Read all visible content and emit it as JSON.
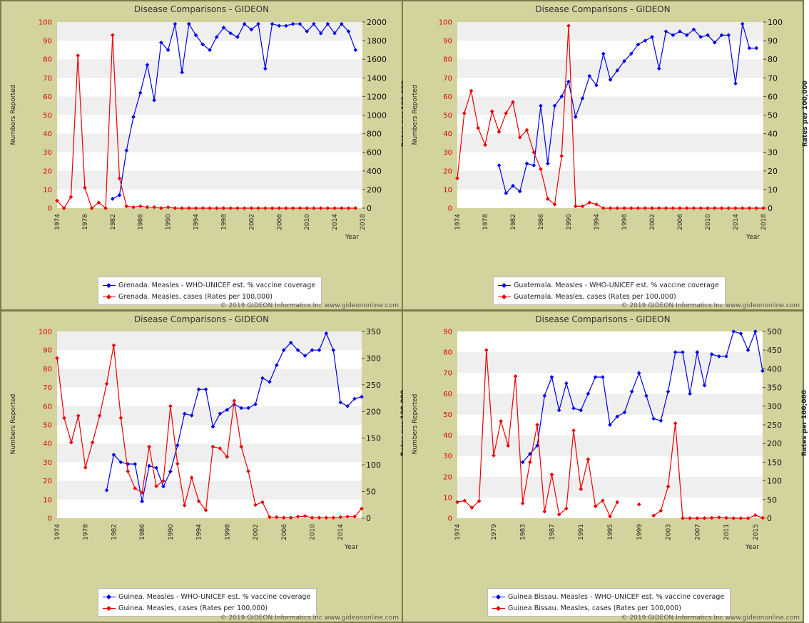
{
  "panels": [
    {
      "title": "Disease Comparisons - GIDEON",
      "ylabel_left": "Numbers Reported",
      "ylabel_right": "Rates per 100,000",
      "xlabel": "Year",
      "copyright": "© 2019 GIDEON Informatics Inc www.gideononline.com",
      "legend": [
        "Grenada. Measles - WHO-UNICEF est. % vaccine coverage",
        "Grenada. Measles, cases (Rates per 100,000)"
      ]
    },
    {
      "title": "Disease Comparisons - GIDEON",
      "ylabel_left": "Numbers Reported",
      "ylabel_right": "Rates per 100,000",
      "xlabel": "Year",
      "copyright": "© 2019 GIDEON Informatics Inc www.gideononline.com",
      "legend": [
        "Guatemala. Measles - WHO-UNICEF est. % vaccine coverage",
        "Guatemala. Measles, cases (Rates per 100,000)"
      ]
    },
    {
      "title": "Disease Comparisons - GIDEON",
      "ylabel_left": "Numbers Reported",
      "ylabel_right": "Rates per 100,000",
      "xlabel": "Year",
      "copyright": "© 2019 GIDEON Informatics Inc www.gideononline.com",
      "legend": [
        "Guinea. Measles - WHO-UNICEF est. % vaccine coverage",
        "Guinea. Measles, cases (Rates per 100,000)"
      ]
    },
    {
      "title": "Disease Comparisons - GIDEON",
      "ylabel_left": "Numbers Reported",
      "ylabel_right": "Rates per 100,000",
      "xlabel": "Year",
      "copyright": "© 2019 GIDEON Informatics Inc www.gideononline.com",
      "legend": [
        "Guinea Bissau. Measles - WHO-UNICEF est. % vaccine coverage",
        "Guinea Bissau. Measles, cases (Rates per 100,000)"
      ]
    }
  ],
  "colors": {
    "coverage": "#0000ee",
    "cases": "#ee0000",
    "band": "#efefef",
    "panel_bg": "#d3d39d"
  },
  "chart_data": [
    {
      "type": "line",
      "title": "Disease Comparisons - GIDEON",
      "xlabel": "Year",
      "xlim": [
        1974,
        2018
      ],
      "x_ticks": [
        "1974",
        "1978",
        "1982",
        "1986",
        "1990",
        "1994",
        "1998",
        "2002",
        "2006",
        "2010",
        "2014",
        "2018"
      ],
      "ylabel_left": "Numbers Reported",
      "ylim_left": [
        0,
        100
      ],
      "y_ticks_left": [
        "0",
        "10",
        "20",
        "30",
        "40",
        "50",
        "60",
        "70",
        "80",
        "90",
        "100"
      ],
      "ylabel_right": "Rates per 100,000",
      "ylim_right": [
        0,
        2000
      ],
      "y_ticks_right": [
        "0",
        "200",
        "400",
        "600",
        "800",
        "1000",
        "1200",
        "1400",
        "1600",
        "1800",
        "2000"
      ],
      "series": [
        {
          "name": "Grenada. Measles - WHO-UNICEF est. % vaccine coverage",
          "axis": "left",
          "x": [
            1982,
            1983,
            1984,
            1985,
            1986,
            1987,
            1988,
            1989,
            1990,
            1991,
            1992,
            1993,
            1994,
            1995,
            1996,
            1997,
            1998,
            1999,
            2000,
            2001,
            2002,
            2003,
            2004,
            2005,
            2006,
            2007,
            2008,
            2009,
            2010,
            2011,
            2012,
            2013,
            2014,
            2015,
            2016,
            2017
          ],
          "values": [
            5,
            7,
            31,
            49,
            62,
            77,
            58,
            89,
            85,
            99,
            73,
            99,
            93,
            88,
            85,
            92,
            97,
            94,
            92,
            99,
            96,
            99,
            75,
            99,
            98,
            98,
            99,
            99,
            95,
            99,
            94,
            99,
            94,
            99,
            95,
            85
          ]
        },
        {
          "name": "Grenada. Measles, cases (Rates per 100,000)",
          "axis": "right",
          "x": [
            1974,
            1975,
            1976,
            1977,
            1978,
            1979,
            1980,
            1981,
            1982,
            1983,
            1984,
            1985,
            1986,
            1987,
            1988,
            1989,
            1990,
            1991,
            1992,
            1993,
            1994,
            1995,
            1996,
            1997,
            1998,
            1999,
            2000,
            2001,
            2002,
            2003,
            2004,
            2005,
            2006,
            2007,
            2008,
            2009,
            2010,
            2011,
            2012,
            2013,
            2014,
            2015,
            2016,
            2017
          ],
          "values": [
            80,
            0,
            120,
            1640,
            220,
            0,
            60,
            0,
            1860,
            320,
            20,
            10,
            20,
            10,
            10,
            0,
            10,
            0,
            0,
            0,
            0,
            0,
            0,
            0,
            0,
            0,
            0,
            0,
            0,
            0,
            0,
            0,
            0,
            0,
            0,
            0,
            0,
            0,
            0,
            0,
            0,
            0,
            0,
            0
          ]
        }
      ]
    },
    {
      "type": "line",
      "title": "Disease Comparisons - GIDEON",
      "xlabel": "Year",
      "xlim": [
        1974,
        2018
      ],
      "x_ticks": [
        "1974",
        "1978",
        "1982",
        "1986",
        "1990",
        "1994",
        "1998",
        "2002",
        "2006",
        "2010",
        "2014",
        "2018"
      ],
      "ylabel_left": "Numbers Reported",
      "ylim_left": [
        0,
        100
      ],
      "y_ticks_left": [
        "0",
        "10",
        "20",
        "30",
        "40",
        "50",
        "60",
        "70",
        "80",
        "90",
        "100"
      ],
      "ylabel_right": "Rates per 100,000",
      "ylim_right": [
        0,
        100
      ],
      "y_ticks_right": [
        "0",
        "10",
        "20",
        "30",
        "40",
        "50",
        "60",
        "70",
        "80",
        "90",
        "100"
      ],
      "series": [
        {
          "name": "Guatemala. Measles - WHO-UNICEF est. % vaccine coverage",
          "axis": "left",
          "x": [
            1980,
            1981,
            1982,
            1983,
            1984,
            1985,
            1986,
            1987,
            1988,
            1989,
            1990,
            1991,
            1992,
            1993,
            1994,
            1995,
            1996,
            1997,
            1998,
            1999,
            2000,
            2001,
            2002,
            2003,
            2004,
            2005,
            2006,
            2007,
            2008,
            2009,
            2010,
            2011,
            2012,
            2013,
            2014,
            2015,
            2016,
            2017
          ],
          "values": [
            23,
            8,
            12,
            9,
            24,
            23,
            55,
            24,
            55,
            60,
            68,
            49,
            59,
            71,
            66,
            83,
            69,
            74,
            79,
            83,
            88,
            90,
            92,
            75,
            95,
            93,
            95,
            93,
            96,
            92,
            93,
            89,
            93,
            93,
            67,
            99,
            86,
            86
          ]
        },
        {
          "name": "Guatemala. Measles, cases (Rates per 100,000)",
          "axis": "right",
          "x": [
            1974,
            1975,
            1976,
            1977,
            1978,
            1979,
            1980,
            1981,
            1982,
            1983,
            1984,
            1985,
            1986,
            1987,
            1988,
            1989,
            1990,
            1991,
            1992,
            1993,
            1994,
            1995,
            1996,
            1997,
            1998,
            1999,
            2000,
            2001,
            2002,
            2003,
            2004,
            2005,
            2006,
            2007,
            2008,
            2009,
            2010,
            2011,
            2012,
            2013,
            2014,
            2015,
            2016,
            2017,
            2018
          ],
          "values": [
            16,
            51,
            63,
            43,
            34,
            52,
            41,
            51,
            57,
            38,
            42,
            30,
            21,
            5,
            2,
            28,
            98,
            1,
            1,
            3,
            2,
            0,
            0,
            0,
            0,
            0,
            0,
            0,
            0,
            0,
            0,
            0,
            0,
            0,
            0,
            0,
            0,
            0,
            0,
            0,
            0,
            0,
            0,
            0,
            0
          ]
        }
      ]
    },
    {
      "type": "line",
      "title": "Disease Comparisons - GIDEON",
      "xlabel": "Year",
      "xlim": [
        1974,
        2017
      ],
      "x_ticks": [
        "1974",
        "1978",
        "1982",
        "1986",
        "1990",
        "1994",
        "1998",
        "2002",
        "2006",
        "2010",
        "2014"
      ],
      "ylabel_left": "Numbers Reported",
      "ylim_left": [
        0,
        100
      ],
      "y_ticks_left": [
        "0",
        "10",
        "20",
        "30",
        "40",
        "50",
        "60",
        "70",
        "80",
        "90",
        "100"
      ],
      "ylabel_right": "Rates per 100,000",
      "ylim_right": [
        0,
        350
      ],
      "y_ticks_right": [
        "0",
        "50",
        "100",
        "150",
        "200",
        "250",
        "300",
        "350"
      ],
      "series": [
        {
          "name": "Guinea. Measles - WHO-UNICEF est. % vaccine coverage",
          "axis": "left",
          "x": [
            1981,
            1982,
            1983,
            1984,
            1985,
            1986,
            1987,
            1988,
            1989,
            1990,
            1991,
            1992,
            1993,
            1994,
            1995,
            1996,
            1997,
            1998,
            1999,
            2000,
            2001,
            2002,
            2003,
            2004,
            2005,
            2006,
            2007,
            2008,
            2009,
            2010,
            2011,
            2012,
            2013,
            2014,
            2015,
            2016,
            2017
          ],
          "values": [
            15,
            34,
            30,
            29,
            29,
            9,
            28,
            27,
            17,
            25,
            39,
            56,
            55,
            69,
            69,
            49,
            56,
            58,
            61,
            59,
            59,
            61,
            75,
            73,
            82,
            90,
            94,
            90,
            87,
            90,
            90,
            99,
            90,
            62,
            60,
            64,
            65
          ]
        },
        {
          "name": "Guinea. Measles, cases (Rates per 100,000)",
          "axis": "right",
          "x": [
            1974,
            1975,
            1976,
            1977,
            1978,
            1979,
            1980,
            1981,
            1982,
            1983,
            1984,
            1985,
            1986,
            1987,
            1988,
            1989,
            1990,
            1991,
            1992,
            1993,
            1994,
            1995,
            1996,
            1997,
            1998,
            1999,
            2000,
            2001,
            2002,
            2003,
            2004,
            2005,
            2006,
            2007,
            2008,
            2009,
            2010,
            2011,
            2012,
            2013,
            2014,
            2015,
            2016,
            2017
          ],
          "values": [
            300,
            188,
            142,
            192,
            95,
            142,
            192,
            252,
            324,
            188,
            88,
            56,
            48,
            134,
            60,
            70,
            210,
            102,
            24,
            76,
            32,
            15,
            134,
            131,
            115,
            220,
            134,
            88,
            25,
            30,
            2,
            2,
            1,
            1,
            3,
            4,
            1,
            1,
            1,
            1,
            2,
            3,
            3,
            18
          ]
        }
      ]
    },
    {
      "type": "line",
      "title": "Disease Comparisons - GIDEON",
      "xlabel": "Year",
      "xlim": [
        1974,
        2016
      ],
      "x_ticks": [
        "1974",
        "1979",
        "1983",
        "1987",
        "1991",
        "1995",
        "1999",
        "2003",
        "2007",
        "2011",
        "2015"
      ],
      "ylabel_left": "Numbers Reported",
      "ylim_left": [
        0,
        90
      ],
      "y_ticks_left": [
        "0",
        "10",
        "20",
        "30",
        "40",
        "50",
        "60",
        "70",
        "80",
        "90"
      ],
      "ylabel_right": "Rates per 100,000",
      "ylim_right": [
        0,
        500
      ],
      "y_ticks_right": [
        "0",
        "50",
        "100",
        "150",
        "200",
        "250",
        "300",
        "350",
        "400",
        "450",
        "500"
      ],
      "series": [
        {
          "name": "Guinea Bissau. Measles - WHO-UNICEF est. % vaccine coverage",
          "axis": "left",
          "x": [
            1983,
            1984,
            1985,
            1986,
            1987,
            1988,
            1989,
            1990,
            1991,
            1992,
            1993,
            1994,
            1995,
            1996,
            1997,
            1998,
            1999,
            2000,
            2001,
            2002,
            2003,
            2004,
            2005,
            2006,
            2007,
            2008,
            2009,
            2010,
            2011,
            2012,
            2013,
            2014,
            2015,
            2016
          ],
          "values": [
            27,
            31,
            35,
            59,
            68,
            52,
            65,
            53,
            52,
            60,
            68,
            68,
            45,
            49,
            51,
            61,
            70,
            59,
            48,
            47,
            61,
            80,
            80,
            60,
            80,
            64,
            79,
            78,
            78,
            90,
            89,
            81,
            90,
            71
          ]
        },
        {
          "name": "Guinea Bissau. Measles, cases (Rates per 100,000)",
          "axis": "right",
          "x": [
            1974,
            1975,
            1976,
            1977,
            1978,
            1979,
            1980,
            1981,
            1982,
            1983,
            1984,
            1985,
            1986,
            1987,
            1988,
            1989,
            1990,
            1991,
            1992,
            1993,
            1994,
            1995,
            1996,
            1997,
            null,
            1999,
            null,
            2001,
            2002,
            2003,
            2004,
            2005,
            2006,
            2007,
            2008,
            2009,
            2010,
            2011,
            2012,
            2013,
            2014,
            2015,
            2016
          ],
          "values": [
            43,
            47,
            28,
            46,
            450,
            168,
            260,
            194,
            380,
            40,
            150,
            250,
            18,
            117,
            10,
            26,
            235,
            78,
            158,
            32,
            47,
            5,
            43,
            null,
            null,
            37,
            null,
            7,
            20,
            85,
            254,
            0,
            0,
            0,
            0,
            1,
            2,
            1,
            0,
            0,
            0,
            8,
            1
          ]
        }
      ]
    }
  ]
}
